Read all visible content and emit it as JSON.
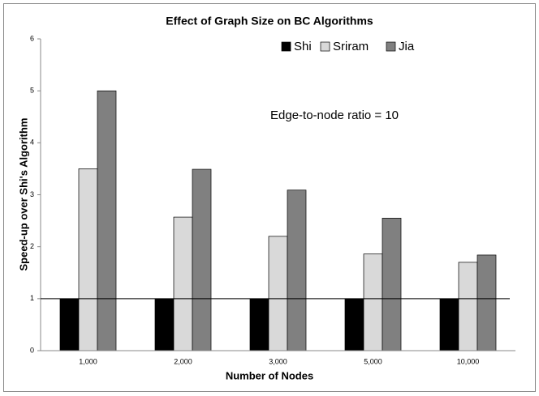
{
  "chart_data": {
    "type": "bar",
    "title": "Effect of Graph Size on BC Algorithms",
    "x_label": "Number of Nodes",
    "y_label": "Speed-up over Shi's Algorithm",
    "annotation": "Edge-to-node ratio = 10",
    "categories": [
      "1,000",
      "2,000",
      "3,000",
      "5,000",
      "10,000"
    ],
    "series": [
      {
        "name": "Shi",
        "color": "#000000",
        "values": [
          1,
          1,
          1,
          1,
          1
        ]
      },
      {
        "name": "Sriram",
        "color": "#d9d9d9",
        "values": [
          3.5,
          2.57,
          2.2,
          1.86,
          1.7
        ]
      },
      {
        "name": "Jia",
        "color": "#808080",
        "values": [
          5.0,
          3.49,
          3.09,
          2.55,
          1.84
        ]
      }
    ],
    "hline": 1,
    "ylim": [
      0,
      6
    ],
    "yticks": [
      0,
      1,
      2,
      3,
      4,
      5,
      6
    ],
    "grid": false,
    "legend": "top-right"
  }
}
